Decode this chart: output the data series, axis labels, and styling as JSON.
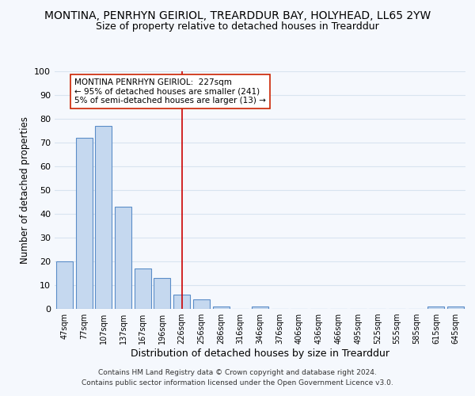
{
  "title": "MONTINA, PENRHYN GEIRIOL, TREARDDUR BAY, HOLYHEAD, LL65 2YW",
  "subtitle": "Size of property relative to detached houses in Trearddur",
  "xlabel": "Distribution of detached houses by size in Trearddur",
  "ylabel": "Number of detached properties",
  "footer_line1": "Contains HM Land Registry data © Crown copyright and database right 2024.",
  "footer_line2": "Contains public sector information licensed under the Open Government Licence v3.0.",
  "categories": [
    "47sqm",
    "77sqm",
    "107sqm",
    "137sqm",
    "167sqm",
    "196sqm",
    "226sqm",
    "256sqm",
    "286sqm",
    "316sqm",
    "346sqm",
    "376sqm",
    "406sqm",
    "436sqm",
    "466sqm",
    "495sqm",
    "525sqm",
    "555sqm",
    "585sqm",
    "615sqm",
    "645sqm"
  ],
  "values": [
    20,
    72,
    77,
    43,
    17,
    13,
    6,
    4,
    1,
    0,
    1,
    0,
    0,
    0,
    0,
    0,
    0,
    0,
    0,
    1,
    1
  ],
  "bar_color": "#c5d8ef",
  "bar_edge_color": "#5b8dc8",
  "vline_x": 6,
  "vline_color": "#cc0000",
  "ann_line1": "MONTINA PENRHYN GEIRIOL:  227sqm",
  "ann_line2": "← 95% of detached houses are smaller (241)",
  "ann_line3": "5% of semi-detached houses are larger (13) →",
  "ylim": [
    0,
    100
  ],
  "yticks": [
    0,
    10,
    20,
    30,
    40,
    50,
    60,
    70,
    80,
    90,
    100
  ],
  "bg_color": "#f5f8fd",
  "plot_bg_color": "#f5f8fd",
  "grid_color": "#d8e4f0",
  "title_fontsize": 10,
  "subtitle_fontsize": 9
}
